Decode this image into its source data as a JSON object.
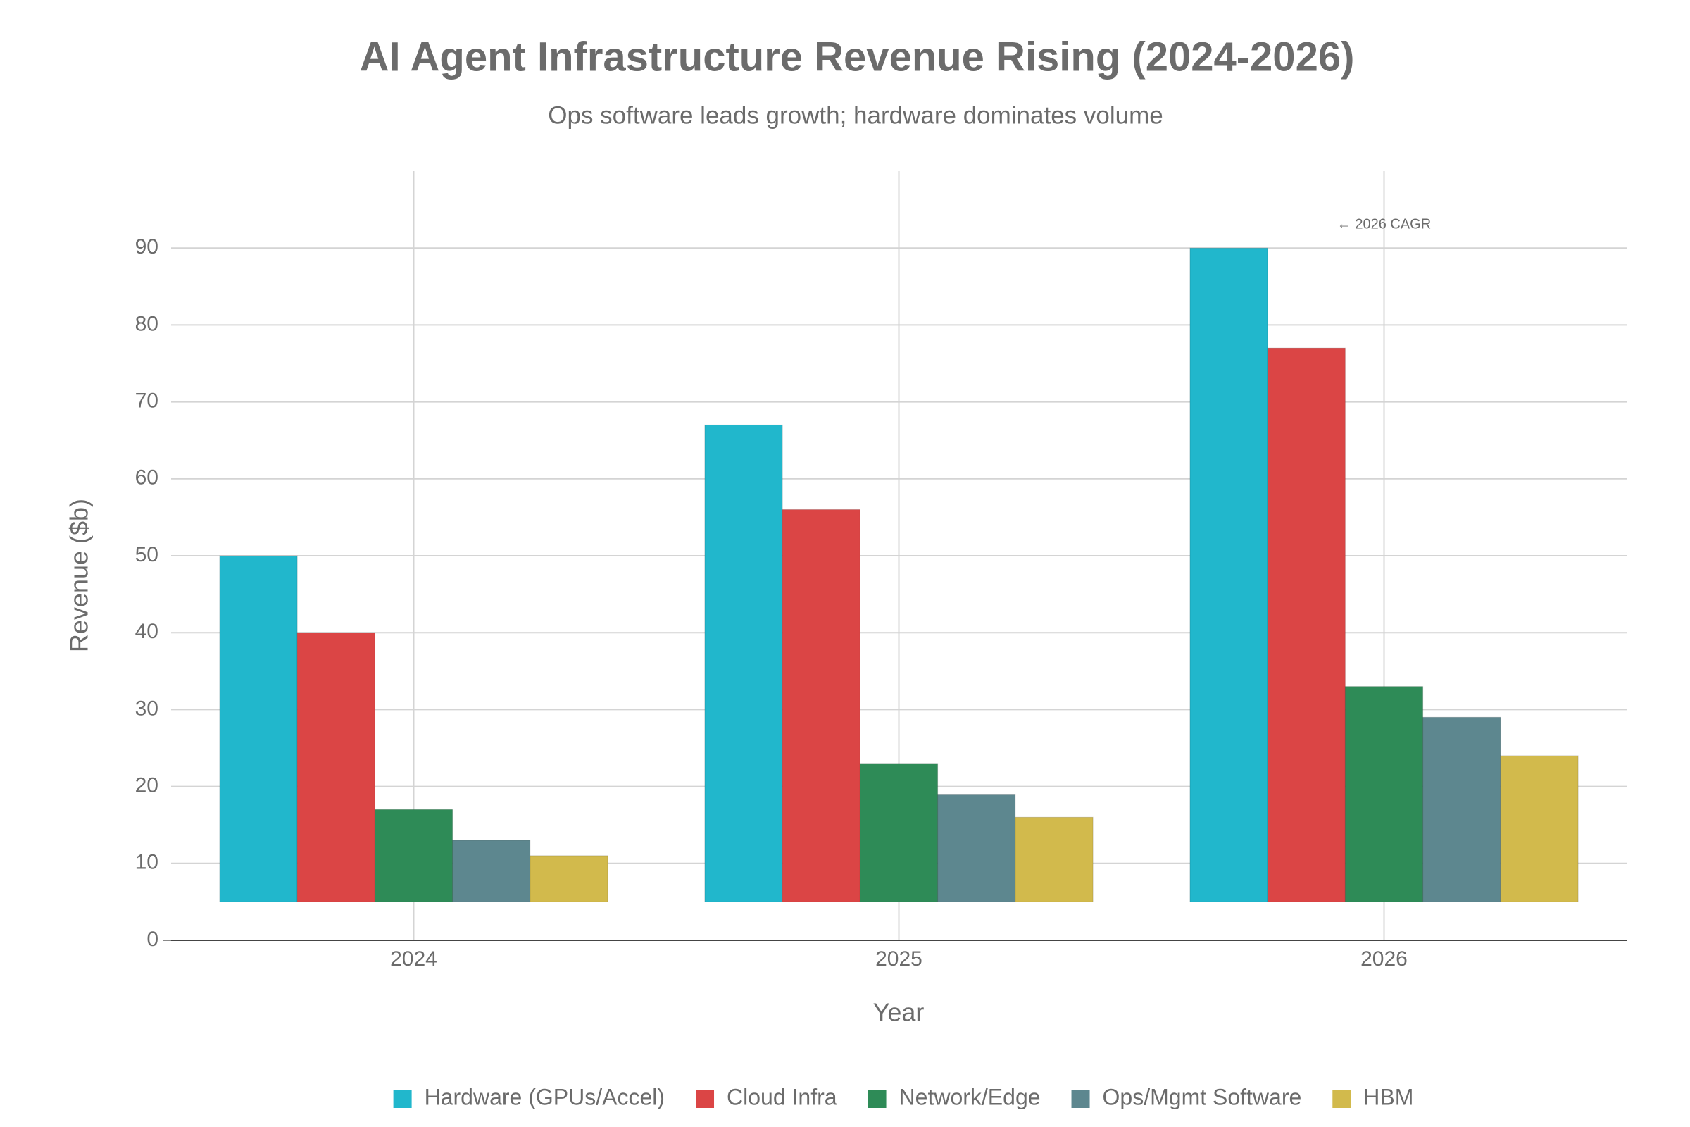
{
  "chart_data": {
    "type": "bar",
    "title": "AI Agent Infrastructure Revenue Rising (2024-2026)",
    "subtitle": "Ops software leads growth; hardware dominates volume",
    "x_label": "Year",
    "y_label": "Revenue ($b)",
    "categories": [
      "2024",
      "2025",
      "2026"
    ],
    "series": [
      {
        "name": "Hardware (GPUs/Accel)",
        "color": "#21b7cc",
        "values": [
          50,
          67,
          90
        ]
      },
      {
        "name": "Cloud Infra",
        "color": "#db4545",
        "values": [
          40,
          56,
          77
        ]
      },
      {
        "name": "Network/Edge",
        "color": "#2e8b57",
        "values": [
          17,
          23,
          33
        ]
      },
      {
        "name": "Ops/Mgmt Software",
        "color": "#5d878f",
        "values": [
          13,
          19,
          29
        ]
      },
      {
        "name": "HBM",
        "color": "#d2ba4c",
        "values": [
          11,
          16,
          24
        ]
      }
    ],
    "base": 5,
    "ylim": [
      0,
      100
    ],
    "yticks": [
      0,
      10,
      20,
      30,
      40,
      50,
      60,
      70,
      80,
      90
    ],
    "grid": true,
    "legend": "bottom",
    "annotation": {
      "text": "← 2026 CAGR",
      "category": "2026",
      "y": 93
    }
  }
}
